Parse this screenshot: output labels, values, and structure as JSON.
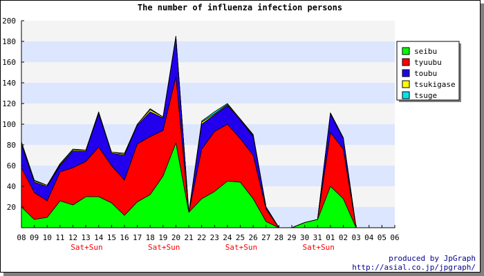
{
  "chart_data": {
    "type": "area",
    "title": "The number of influenza infection persons",
    "stacked": true,
    "x": [
      "08",
      "09",
      "10",
      "11",
      "12",
      "13",
      "14",
      "15",
      "16",
      "17",
      "18",
      "19",
      "20",
      "21",
      "22",
      "23",
      "24",
      "25",
      "26",
      "27",
      "28",
      "29",
      "30",
      "31",
      "01",
      "02",
      "03",
      "04",
      "05",
      "06"
    ],
    "weekend_labels": [
      {
        "index": 4,
        "text": "Sat+Sun"
      },
      {
        "index": 10,
        "text": "Sat+Sun"
      },
      {
        "index": 16,
        "text": "Sat+Sun"
      },
      {
        "index": 22,
        "text": "Sat+Sun"
      }
    ],
    "series": [
      {
        "name": "seibu",
        "color": "#00ff00",
        "values": [
          20,
          8,
          10,
          26,
          22,
          30,
          30,
          24,
          12,
          25,
          32,
          50,
          82,
          15,
          28,
          35,
          45,
          44,
          28,
          6,
          0,
          0,
          5,
          8,
          40,
          28,
          0,
          0,
          0,
          0
        ]
      },
      {
        "name": "tyuubu",
        "color": "#ff0000",
        "values": [
          38,
          26,
          16,
          28,
          36,
          34,
          48,
          36,
          34,
          56,
          56,
          44,
          64,
          0,
          48,
          58,
          55,
          42,
          42,
          12,
          0,
          0,
          0,
          0,
          52,
          48,
          0,
          0,
          0,
          0
        ]
      },
      {
        "name": "toubu",
        "color": "#2200ee",
        "values": [
          22,
          10,
          14,
          6,
          16,
          10,
          32,
          12,
          24,
          18,
          24,
          12,
          38,
          0,
          24,
          16,
          18,
          18,
          18,
          2,
          0,
          0,
          0,
          0,
          18,
          10,
          0,
          0,
          0,
          0
        ]
      },
      {
        "name": "tsukigase",
        "color": "#ffff00",
        "values": [
          2,
          1,
          1,
          1,
          1,
          1,
          1,
          1,
          1,
          1,
          2,
          1,
          1,
          0,
          2,
          1,
          1,
          1,
          1,
          0,
          0,
          0,
          0,
          0,
          1,
          1,
          0,
          0,
          0,
          0
        ]
      },
      {
        "name": "tsuge",
        "color": "#00e5ee",
        "values": [
          1,
          1,
          0,
          1,
          1,
          0,
          1,
          0,
          1,
          0,
          1,
          0,
          0,
          0,
          1,
          2,
          1,
          0,
          1,
          0,
          0,
          0,
          0,
          0,
          0,
          0,
          0,
          0,
          0,
          0
        ]
      }
    ],
    "ylim": [
      0,
      200
    ],
    "yticks": [
      20,
      40,
      60,
      80,
      100,
      120,
      140,
      160,
      180,
      200
    ],
    "grid": true,
    "legend_position": "right-top",
    "colors": {
      "band_blue": "#dde6ff",
      "band_gray": "#f4f4f4",
      "weekend": "#ff0000"
    }
  },
  "credits": {
    "line1": "produced by JpGraph",
    "line2": "http://asial.co.jp/jpgraph/"
  }
}
